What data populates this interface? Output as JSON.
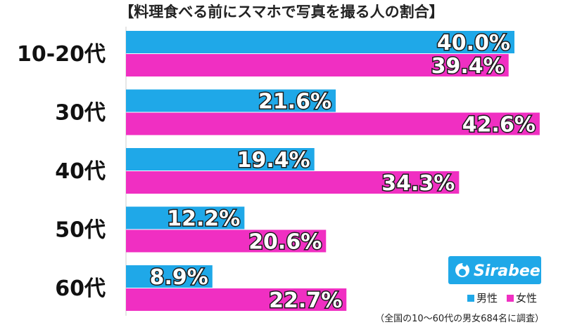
{
  "chart_data": {
    "type": "bar",
    "orientation": "horizontal",
    "title": "【料理食べる前にスマホで写真を撮る人の割合】",
    "categories": [
      "10-20代",
      "30代",
      "40代",
      "50代",
      "60代"
    ],
    "series": [
      {
        "name": "男性",
        "color": "#1fa8e8",
        "values": [
          40.0,
          21.6,
          19.4,
          12.2,
          8.9
        ]
      },
      {
        "name": "女性",
        "color": "#f02fc2",
        "values": [
          39.4,
          42.6,
          34.3,
          20.6,
          22.7
        ]
      }
    ],
    "value_suffix": "%",
    "xlim": [
      0,
      45
    ],
    "grid": false,
    "legend_position": "bottom-right"
  },
  "logo": {
    "text": "Sirabee",
    "color": "#1fa8e8",
    "icon": "sirabee-logo-icon"
  },
  "note": "（全国の10〜60代の男女684名に調査）"
}
